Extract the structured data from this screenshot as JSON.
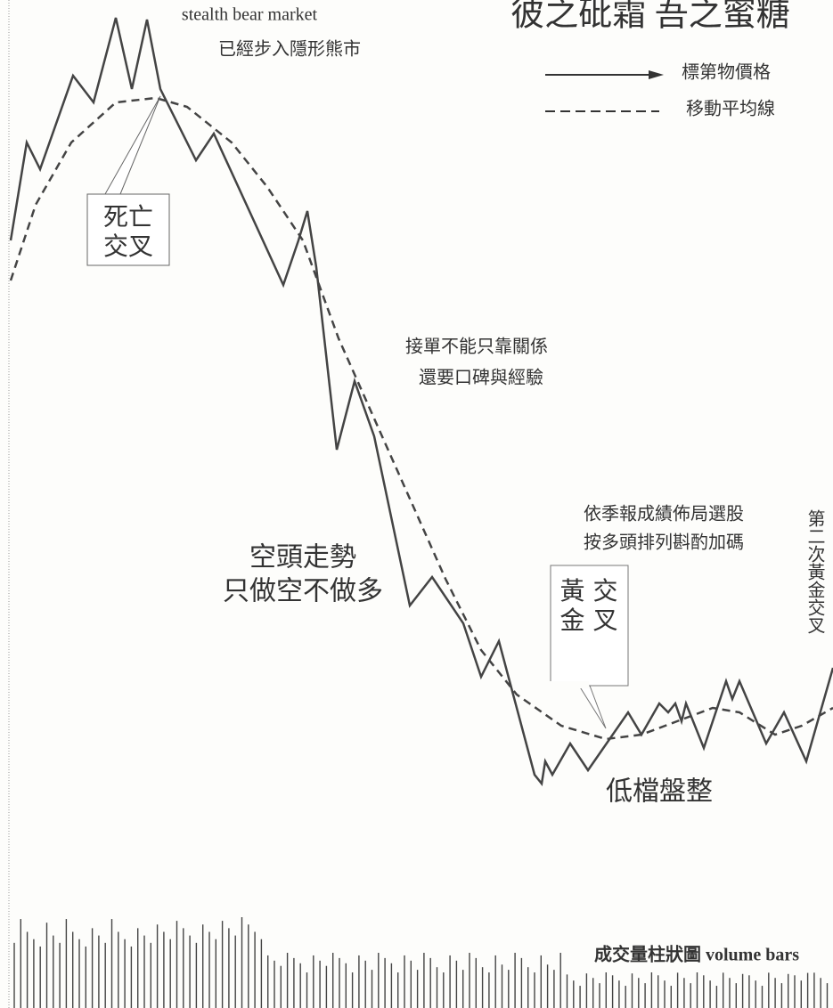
{
  "title": "彼之砒霜 吾之蜜糖",
  "top_note": {
    "line1": "stealth bear market",
    "line2": "已經步入隱形熊市"
  },
  "legend": {
    "price": "標第物價格",
    "average": "移動平均線"
  },
  "death_cross": {
    "line1": "死亡",
    "line2": "交叉"
  },
  "note_orders": {
    "line1": "接單不能只靠關係",
    "line2": "還要口碑與經驗"
  },
  "bear_trend": {
    "line1": "空頭走勢",
    "line2": "只做空不做多"
  },
  "note_stocks": {
    "line1": "依季報成績佈局選股",
    "line2": "按多頭排列斟酌加碼"
  },
  "golden_cross": {
    "line1": "黃 交",
    "line2": "金 叉"
  },
  "second_golden_cross": "第二次黃金交叉",
  "consolidation": "低檔盤整",
  "volume_label": "成交量柱狀圖 volume bars"
}
